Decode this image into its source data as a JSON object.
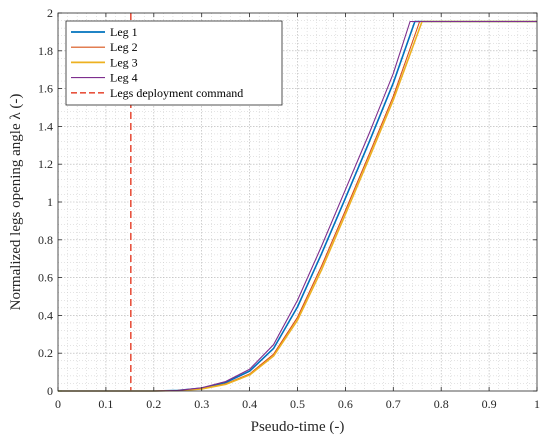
{
  "chart_data": {
    "type": "line",
    "title": "",
    "xlabel": "Pseudo-time (-)",
    "ylabel": "Normalized legs opening angle λ (-)",
    "xlim": [
      0,
      1
    ],
    "ylim": [
      0,
      2
    ],
    "xticks": [
      "0",
      "0.1",
      "0.2",
      "0.3",
      "0.4",
      "0.5",
      "0.6",
      "0.7",
      "0.8",
      "0.9",
      "1"
    ],
    "yticks": [
      "0",
      "0.2",
      "0.4",
      "0.6",
      "0.8",
      "1",
      "1.2",
      "1.4",
      "1.6",
      "1.8",
      "2"
    ],
    "grid": true,
    "minor_grid": true,
    "legend_position": "top-left",
    "series": [
      {
        "name": "Leg 1",
        "color": "#0072BD",
        "x": [
          0,
          0.2,
          0.25,
          0.3,
          0.35,
          0.4,
          0.45,
          0.5,
          0.55,
          0.6,
          0.65,
          0.7,
          0.745,
          0.75,
          1
        ],
        "y": [
          0,
          0,
          0.003,
          0.015,
          0.045,
          0.105,
          0.225,
          0.445,
          0.725,
          1.02,
          1.32,
          1.63,
          1.955,
          1.955,
          1.955
        ]
      },
      {
        "name": "Leg 2",
        "color": "#D95319",
        "x": [
          0,
          0.2,
          0.25,
          0.3,
          0.35,
          0.4,
          0.45,
          0.5,
          0.55,
          0.6,
          0.65,
          0.7,
          0.755,
          0.76,
          1
        ],
        "y": [
          0,
          0,
          0.002,
          0.012,
          0.038,
          0.09,
          0.195,
          0.39,
          0.66,
          0.955,
          1.255,
          1.56,
          1.955,
          1.955,
          1.955
        ]
      },
      {
        "name": "Leg 3",
        "color": "#EDB120",
        "x": [
          0,
          0.2,
          0.25,
          0.3,
          0.35,
          0.4,
          0.45,
          0.5,
          0.55,
          0.6,
          0.65,
          0.7,
          0.76,
          0.765,
          1
        ],
        "y": [
          0,
          0,
          0.002,
          0.011,
          0.035,
          0.085,
          0.185,
          0.375,
          0.64,
          0.935,
          1.235,
          1.54,
          1.955,
          1.955,
          1.955
        ]
      },
      {
        "name": "Leg 4",
        "color": "#7E2F8E",
        "x": [
          0,
          0.2,
          0.25,
          0.3,
          0.35,
          0.4,
          0.45,
          0.5,
          0.55,
          0.6,
          0.65,
          0.7,
          0.735,
          0.74,
          1
        ],
        "y": [
          0,
          0,
          0.003,
          0.017,
          0.05,
          0.115,
          0.245,
          0.48,
          0.765,
          1.065,
          1.365,
          1.68,
          1.955,
          1.955,
          1.955
        ]
      }
    ],
    "vertical_lines": [
      {
        "name": "Legs deployment command",
        "x": 0.152,
        "color": "#E8533F",
        "style": "dashed"
      }
    ]
  }
}
